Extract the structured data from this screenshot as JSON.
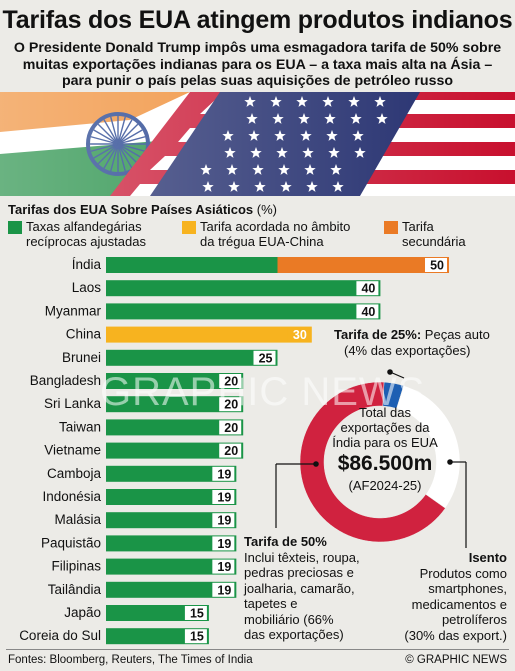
{
  "title": "Tarifas dos EUA atingem produtos indianos",
  "subtitle_lines": [
    "O Presidente Donald Trump impôs uma esmagadora tarifa de 50% sobre",
    "muitas exportações indianas para os EUA – a taxa mais alta na Ásia –",
    "para punir o país pelas suas aquisições de petróleo russo"
  ],
  "section_heading": "Tarifas dos EUA Sobre Países Asiáticos",
  "section_unit": "(%)",
  "legend": [
    {
      "label_lines": [
        "Taxas alfandegárias",
        "recíprocas ajustadas"
      ],
      "color": "#1a9447"
    },
    {
      "label_lines": [
        "Tarifa acordada no âmbito",
        "da trégua EUA-China"
      ],
      "color": "#f7b31f"
    },
    {
      "label_lines": [
        "Tarifa",
        "secundária"
      ],
      "color": "#ea7a25"
    }
  ],
  "chart_data": {
    "type": "bar",
    "orientation": "horizontal",
    "stacked": true,
    "unit": "%",
    "categories": [
      "Índia",
      "Laos",
      "Myanmar",
      "China",
      "Brunei",
      "Bangladesh",
      "Sri Lanka",
      "Taiwan",
      "Vietname",
      "Camboja",
      "Indonésia",
      "Malásia",
      "Paquistão",
      "Filipinas",
      "Tailândia",
      "Japão",
      "Coreia do Sul"
    ],
    "series": [
      {
        "name": "Taxas alfandegárias recíprocas ajustadas",
        "color": "#1a9447",
        "values": [
          25,
          40,
          40,
          0,
          25,
          20,
          20,
          20,
          20,
          19,
          19,
          19,
          19,
          19,
          19,
          15,
          15
        ]
      },
      {
        "name": "Tarifa acordada no âmbito da trégua EUA-China",
        "color": "#f7b31f",
        "values": [
          0,
          0,
          0,
          30,
          0,
          0,
          0,
          0,
          0,
          0,
          0,
          0,
          0,
          0,
          0,
          0,
          0
        ]
      },
      {
        "name": "Tarifa secundária",
        "color": "#ea7a25",
        "values": [
          25,
          0,
          0,
          0,
          0,
          0,
          0,
          0,
          0,
          0,
          0,
          0,
          0,
          0,
          0,
          0,
          0
        ]
      }
    ],
    "totals": [
      50,
      40,
      40,
      30,
      25,
      20,
      20,
      20,
      20,
      19,
      19,
      19,
      19,
      19,
      19,
      15,
      15
    ],
    "xlim": [
      0,
      50
    ],
    "grid": false
  },
  "donut": {
    "center_lines": [
      "Total das",
      "exportações da",
      "Índia para os EUA"
    ],
    "value": "$86.500m",
    "period": "(AF2024-25)",
    "segments": [
      {
        "share": 4,
        "color": "#1d5fb3"
      },
      {
        "share": 30,
        "color": "#ffffff"
      },
      {
        "share": 66,
        "color": "#d0223f"
      }
    ]
  },
  "callouts": {
    "auto_title": "Tarifa de 25%:",
    "auto_rest": " Peças auto",
    "auto_line2": "(4% das exportações)",
    "fifty_title": "Tarifa de 50%",
    "fifty_lines": [
      "Inclui têxteis, roupa,",
      "pedras preciosas e",
      "joalharia, camarão,",
      "tapetes e",
      "mobiliário (66%",
      "das exportações)"
    ],
    "exempt_title": "Isento",
    "exempt_lines": [
      "Produtos como",
      "smartphones,",
      "medicamentos e",
      "petrolíferos",
      "(30% das export.)"
    ]
  },
  "watermark": "GRAPHIC NEWS",
  "footer": {
    "sources": "Fontes: Bloomberg, Reuters, The Times of India",
    "credit": "© GRAPHIC NEWS"
  }
}
